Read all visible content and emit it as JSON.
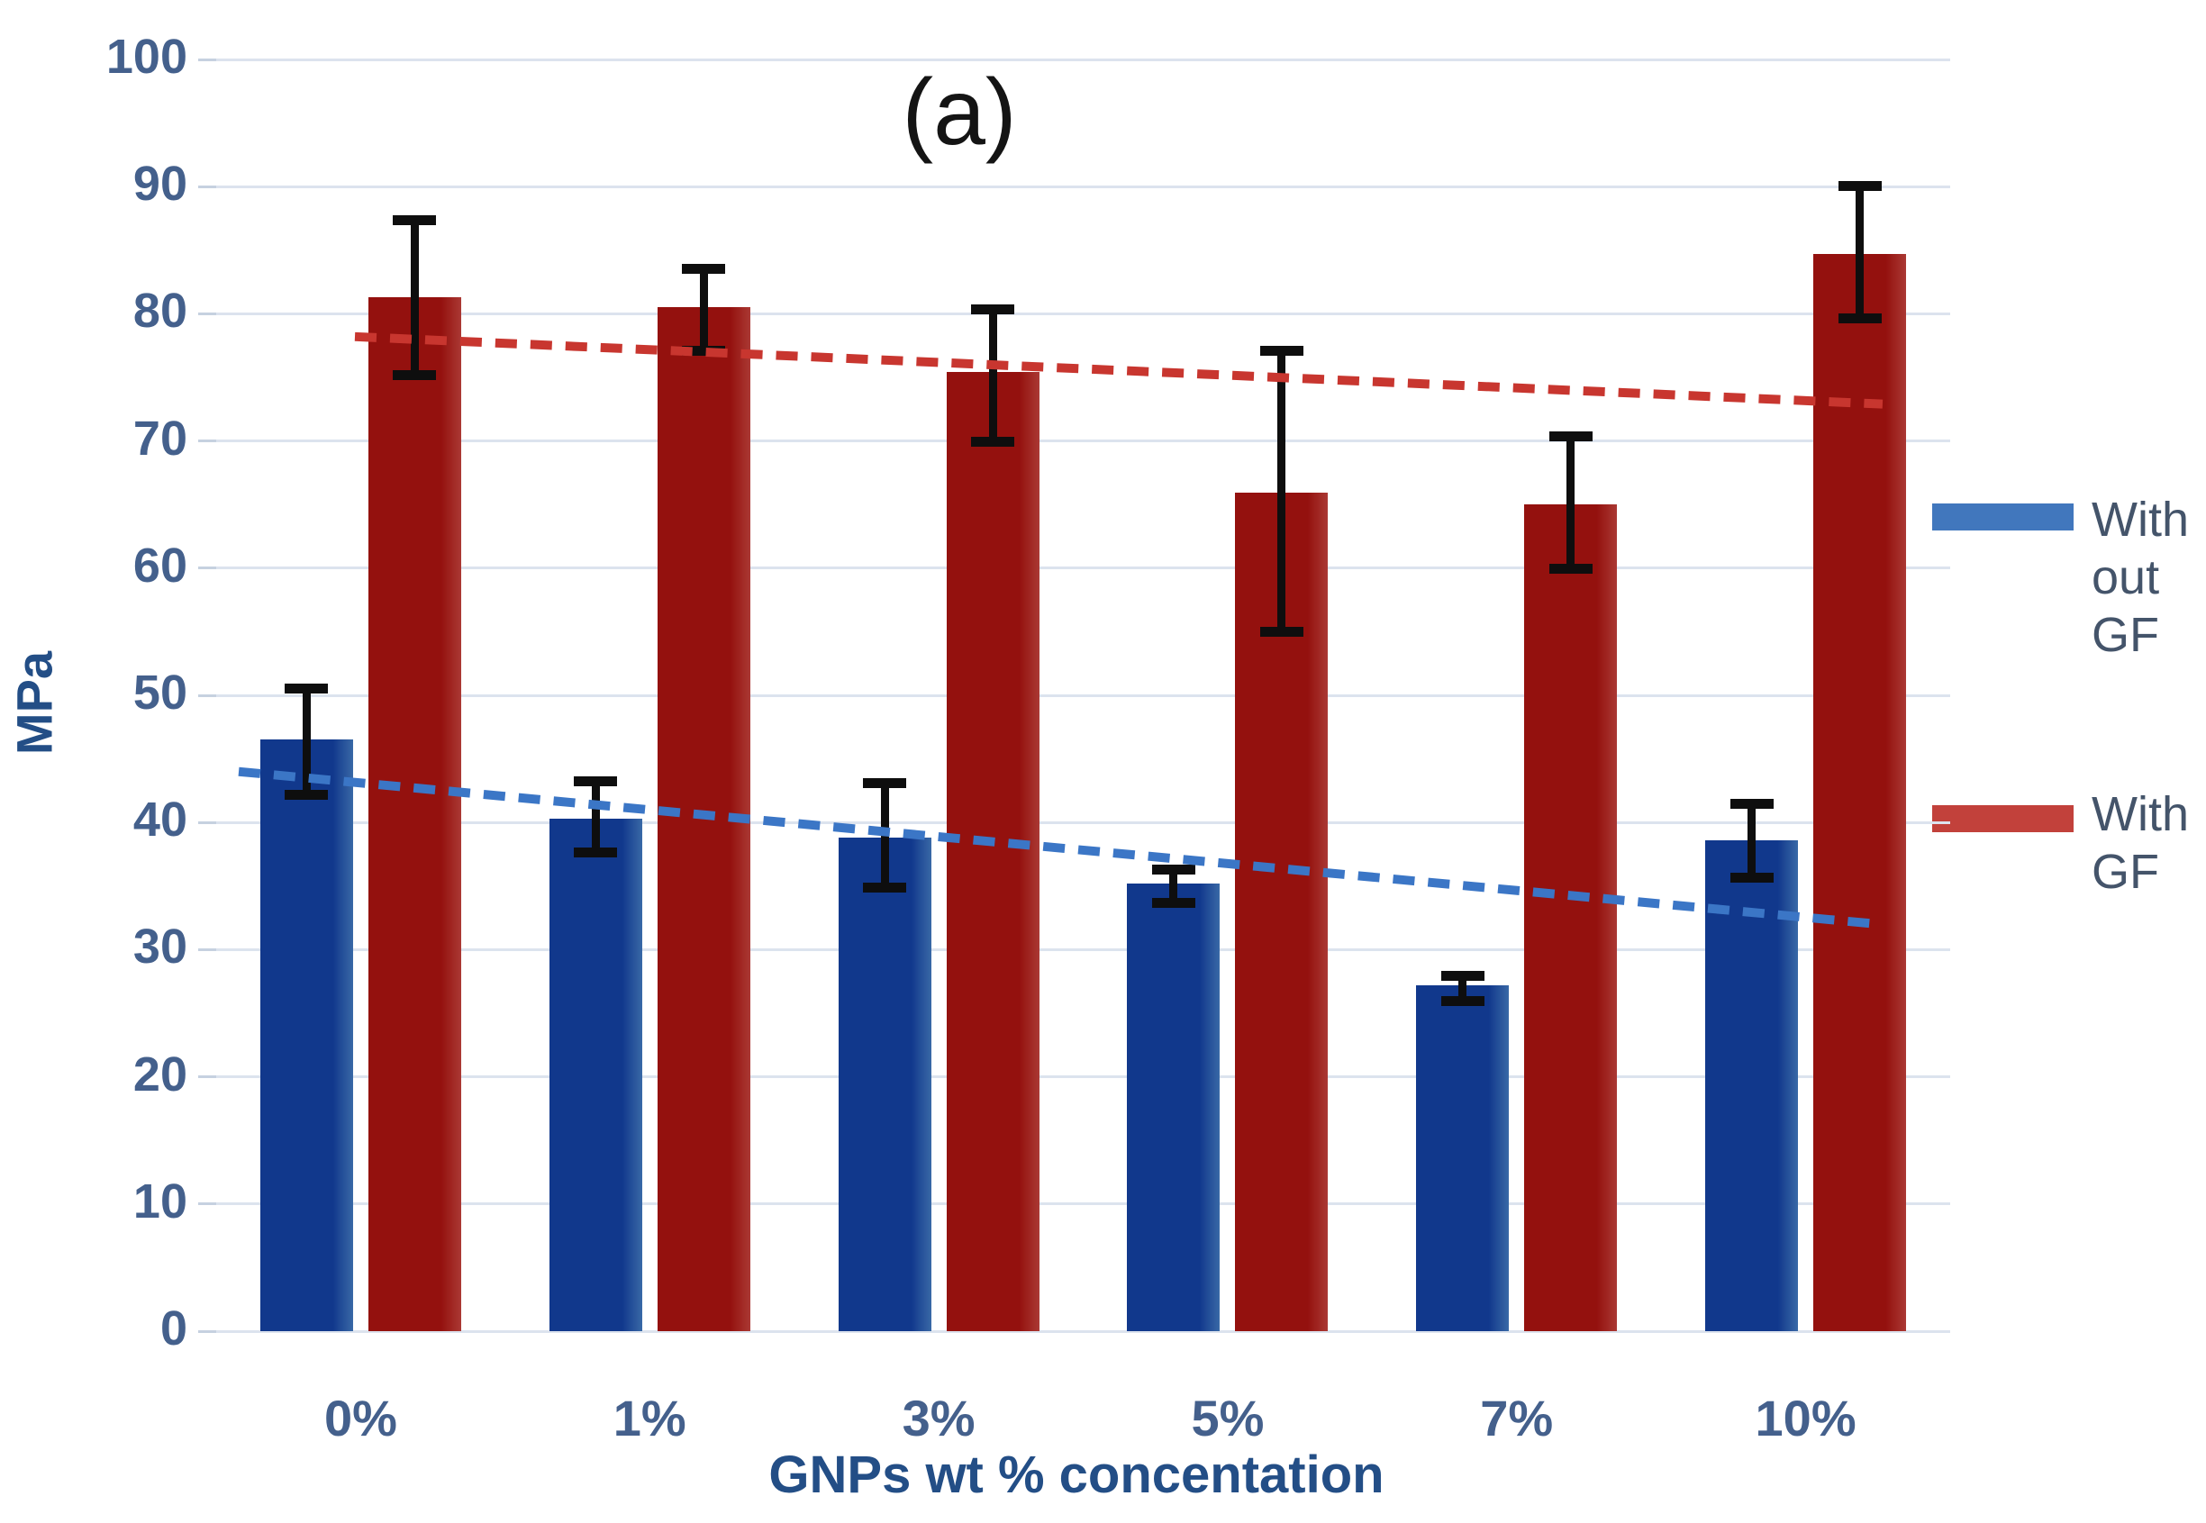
{
  "chart_data": {
    "type": "bar",
    "title": "(a)",
    "ylabel": "MPa",
    "xlabel": "GNPs wt % concentation",
    "ylim": [
      0,
      100
    ],
    "ytick_step": 10,
    "grid": true,
    "legend_position": "right",
    "categories": [
      "0%",
      "1%",
      "3%",
      "5%",
      "7%",
      "10%"
    ],
    "series": [
      {
        "name": "With out GF",
        "color": "#4177bd",
        "values": [
          46.5,
          40.3,
          38.8,
          35.2,
          27.2,
          38.6
        ],
        "error_low": [
          42.2,
          37.7,
          34.9,
          33.7,
          26.0,
          35.7
        ],
        "error_high": [
          50.6,
          43.3,
          43.1,
          36.3,
          28.0,
          41.5
        ],
        "trendline": {
          "style": "dashed",
          "color": "#3b76c6",
          "start_value": 44.0,
          "end_value": 32.0,
          "x_start_frac": 0.013,
          "x_end_frac": 0.959
        }
      },
      {
        "name": "With GF",
        "color": "#c2413b",
        "values": [
          81.3,
          80.5,
          75.4,
          65.9,
          65.0,
          84.7
        ],
        "error_low": [
          75.2,
          77.1,
          70.0,
          55.0,
          60.0,
          79.7
        ],
        "error_high": [
          87.4,
          83.6,
          80.4,
          77.1,
          70.4,
          90.1
        ],
        "trendline": {
          "style": "dashed",
          "color": "#c8362f",
          "start_value": 78.2,
          "end_value": 72.9,
          "x_start_frac": 0.08,
          "x_end_frac": 0.961
        }
      }
    ],
    "error_bar_color": "#0e0e0e",
    "gridline_color": "#dce3ee",
    "tick_stub_color": "#c6d1e0",
    "axis_tick_text_color": "#44608c",
    "axis_title_color": "#234e86",
    "legend_text_color": "#44546a",
    "background_color": "#ffffff"
  }
}
